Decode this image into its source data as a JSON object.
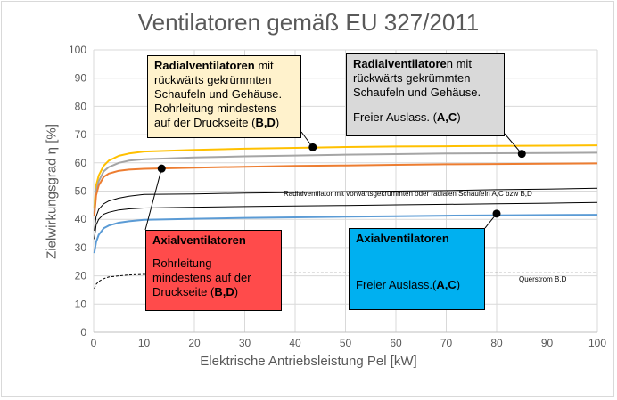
{
  "chart_data": {
    "type": "line",
    "title": "Ventilatoren gemäß EU 327/2011",
    "xlabel": "Elektrische Antriebsleistung Pel [kW]",
    "ylabel": "Zielwirkungsgrad η [%]",
    "xlim": [
      0,
      100
    ],
    "ylim": [
      0,
      100
    ],
    "xticks": [
      0,
      10,
      20,
      30,
      40,
      50,
      60,
      70,
      80,
      90,
      100
    ],
    "yticks": [
      0,
      10,
      20,
      30,
      40,
      50,
      60,
      70,
      80,
      90,
      100
    ],
    "grid": true,
    "series": [
      {
        "color": "#FFC000",
        "dash": "",
        "width": 2,
        "x": [
          0.125,
          0.5,
          1,
          2,
          3,
          5,
          7,
          10,
          20,
          30,
          40,
          50,
          60,
          70,
          80,
          90,
          100
        ],
        "y": [
          44.0,
          52.0,
          55.5,
          59.0,
          60.8,
          62.5,
          63.3,
          64.0,
          64.6,
          65.0,
          65.3,
          65.6,
          65.8,
          65.9,
          66.0,
          66.1,
          66.2
        ]
      },
      {
        "color": "#A5A5A5",
        "dash": "",
        "width": 2,
        "x": [
          0.125,
          0.5,
          1,
          2,
          3,
          5,
          7,
          10,
          20,
          30,
          40,
          50,
          60,
          70,
          80,
          90,
          100
        ],
        "y": [
          42.0,
          50.0,
          53.5,
          57.0,
          58.5,
          60.0,
          60.8,
          61.3,
          61.9,
          62.3,
          62.6,
          62.9,
          63.1,
          63.3,
          63.4,
          63.5,
          63.6
        ]
      },
      {
        "color": "#ED7D31",
        "dash": "",
        "width": 2,
        "x": [
          0.125,
          0.5,
          1,
          2,
          3,
          5,
          7,
          10,
          20,
          30,
          40,
          50,
          60,
          70,
          80,
          90,
          100
        ],
        "y": [
          41.0,
          48.5,
          52.0,
          55.0,
          56.2,
          57.2,
          57.6,
          57.9,
          58.3,
          58.6,
          58.9,
          59.1,
          59.3,
          59.5,
          59.6,
          59.7,
          59.8
        ]
      },
      {
        "color": "#000000",
        "dash": "",
        "width": 1,
        "x": [
          0.125,
          0.5,
          1,
          2,
          3,
          5,
          7,
          10,
          20,
          30,
          40,
          50,
          60,
          70,
          80,
          90,
          100
        ],
        "y": [
          36.0,
          41.0,
          43.5,
          45.5,
          46.5,
          47.5,
          48.2,
          48.8,
          49.0,
          49.3,
          49.5,
          49.8,
          50.0,
          50.2,
          50.5,
          50.7,
          51.0
        ]
      },
      {
        "color": "#000000",
        "dash": "",
        "width": 1,
        "x": [
          0.125,
          0.5,
          1,
          2,
          3,
          5,
          7,
          10,
          20,
          30,
          40,
          50,
          60,
          70,
          80,
          90,
          100
        ],
        "y": [
          33.0,
          38.0,
          40.0,
          41.8,
          42.5,
          43.3,
          43.7,
          44.0,
          44.3,
          44.5,
          44.7,
          44.9,
          45.1,
          45.3,
          45.5,
          45.7,
          46.0
        ]
      },
      {
        "color": "#5B9BD5",
        "dash": "",
        "width": 2,
        "x": [
          0.125,
          0.5,
          1,
          2,
          3,
          5,
          7,
          10,
          20,
          30,
          40,
          50,
          60,
          70,
          80,
          90,
          100
        ],
        "y": [
          28.0,
          32.0,
          34.5,
          36.8,
          37.8,
          38.8,
          39.3,
          39.8,
          40.2,
          40.5,
          40.7,
          40.9,
          41.1,
          41.3,
          41.4,
          41.5,
          41.6
        ]
      },
      {
        "color": "#000000",
        "dash": "3,2",
        "width": 1,
        "x": [
          0.125,
          0.5,
          1,
          2,
          3,
          5,
          7,
          10,
          20,
          30,
          40,
          50,
          60,
          70,
          80,
          90,
          100
        ],
        "y": [
          15.5,
          17.0,
          18.0,
          19.0,
          19.6,
          20.0,
          20.3,
          20.5,
          20.8,
          20.9,
          21.0,
          21.0,
          21.0,
          21.0,
          21.0,
          21.0,
          21.0
        ]
      }
    ],
    "markers": [
      {
        "x": 43.5,
        "y": 65.5
      },
      {
        "x": 85,
        "y": 63.2
      },
      {
        "x": 13.5,
        "y": 58.0
      },
      {
        "x": 80,
        "y": 42.0
      }
    ],
    "annotations": {
      "radial_back_pipe": {
        "bold": "Radialventilatoren",
        "line1": " mit",
        "line2": "rückwärts gekrümmten",
        "line3": "Schaufeln und Gehäuse.",
        "line4": "Rohrleitung mindestens",
        "line5": "auf der Druckseite (",
        "code": "B,D",
        "close": ")",
        "bg": "#FFF2CC"
      },
      "radial_back_free": {
        "bold": "Radialventilatore",
        "line1": "n mit",
        "line2": "rückwärts gekrümmten",
        "line3": "Schaufeln und Gehäuse.",
        "line4": "Freier Auslass. (",
        "code": "A,C",
        "close": ")",
        "bg": "#D9D9D9"
      },
      "axial_pipe": {
        "bold": "Axialventilatoren",
        "line1": "Rohrleitung",
        "line2": "mindestens auf der",
        "line3": "Druckseite (",
        "code": "B,D",
        "close": ")",
        "bg": "#FF4B4B"
      },
      "axial_free": {
        "bold": "Axialventilatoren",
        "line1": "Freier Auslass.(",
        "code": "A,C",
        "close": ")",
        "bg": "#00B0F0"
      },
      "radial_forward_label": "Radialventilator mit vorwärtsgekrümmten oder radialen Schaufeln A,C bzw B,D",
      "querstrom_label": "Querstrom B,D"
    }
  }
}
